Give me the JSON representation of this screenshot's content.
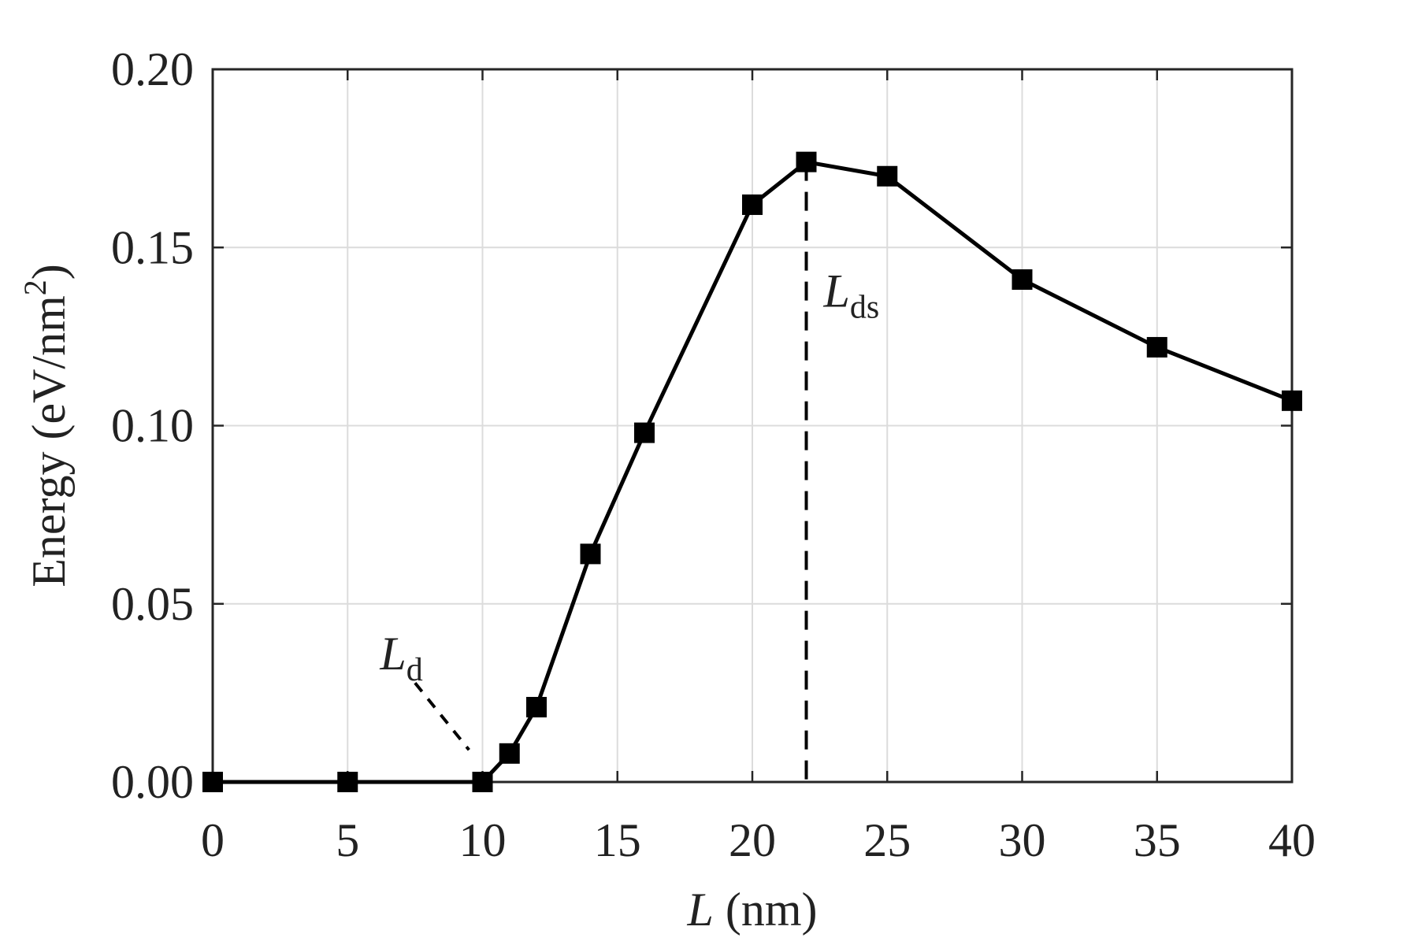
{
  "chart_data": {
    "type": "line",
    "x": [
      0,
      5,
      10,
      11,
      12,
      14,
      16,
      20,
      22,
      25,
      30,
      35,
      40
    ],
    "series": [
      {
        "values": [
          0.0,
          0.0,
          0.0,
          0.008,
          0.021,
          0.064,
          0.098,
          0.162,
          0.174,
          0.17,
          0.141,
          0.122,
          0.107
        ],
        "color": "#000000",
        "marker": "square"
      }
    ],
    "xlim": [
      0,
      40
    ],
    "ylim": [
      0,
      0.2
    ],
    "xticks": [
      0,
      5,
      10,
      15,
      20,
      25,
      30,
      35,
      40
    ],
    "yticks": [
      0.0,
      0.05,
      0.1,
      0.15,
      0.2
    ],
    "xtick_labels": [
      "0",
      "5",
      "10",
      "15",
      "20",
      "25",
      "30",
      "35",
      "40"
    ],
    "ytick_labels": [
      "0.00",
      "0.05",
      "0.10",
      "0.15",
      "0.20"
    ],
    "xlabel": {
      "symbol": "L",
      "unit": " (nm)"
    },
    "ylabel": {
      "text": "Energy (eV/nm",
      "superscript": "2",
      "close": ")"
    },
    "grid": true,
    "annotations": [
      {
        "id": "lds",
        "symbol": "L",
        "subscript": "ds",
        "x": 22,
        "line_from_y": 0.174,
        "line_to_y": 0.0
      },
      {
        "id": "ld",
        "symbol": "L",
        "subscript": "d",
        "pointer_from": [
          7.5,
          0.03
        ],
        "pointer_to": [
          9.5,
          0.009
        ]
      }
    ]
  }
}
